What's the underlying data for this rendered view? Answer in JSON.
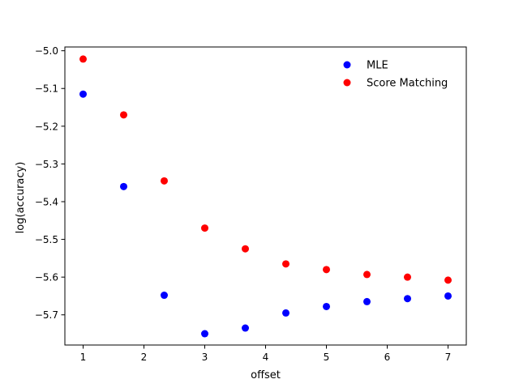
{
  "chart_data": {
    "type": "scatter",
    "title": "",
    "xlabel": "offset",
    "ylabel": "log(accuracy)",
    "xlim": [
      0.7,
      7.3
    ],
    "ylim": [
      -5.78,
      -4.99
    ],
    "xticks": [
      1,
      2,
      3,
      4,
      5,
      6,
      7
    ],
    "xtick_labels": [
      "1",
      "2",
      "3",
      "4",
      "5",
      "6",
      "7"
    ],
    "yticks": [
      -5.7,
      -5.6,
      -5.5,
      -5.4,
      -5.3,
      -5.2,
      -5.1,
      -5.0
    ],
    "ytick_labels": [
      "−5.7",
      "−5.6",
      "−5.5",
      "−5.4",
      "−5.3",
      "−5.2",
      "−5.1",
      "−5.0"
    ],
    "grid": false,
    "legend_position": "upper right",
    "x": [
      1,
      1.6667,
      2.3333,
      3,
      3.6667,
      4.3333,
      5,
      5.6667,
      6.3333,
      7
    ],
    "series": [
      {
        "name": "MLE",
        "color": "#0000ff",
        "values": [
          -5.115,
          -5.36,
          -5.648,
          -5.75,
          -5.735,
          -5.695,
          -5.678,
          -5.665,
          -5.657,
          -5.65
        ]
      },
      {
        "name": "Score Matching",
        "color": "#ff0000",
        "values": [
          -5.022,
          -5.17,
          -5.345,
          -5.47,
          -5.525,
          -5.565,
          -5.58,
          -5.593,
          -5.6,
          -5.608
        ]
      }
    ]
  }
}
